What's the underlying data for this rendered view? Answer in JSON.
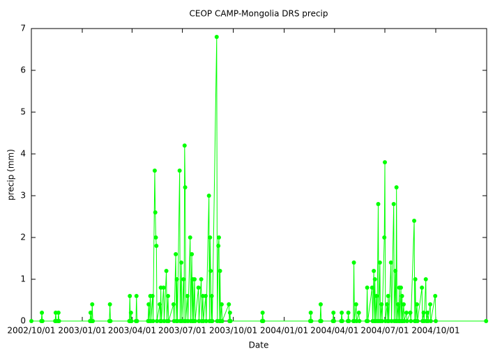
{
  "chart_data": {
    "type": "line",
    "title": "CEOP CAMP-Mongolia DRS  precip",
    "x_label": "Date",
    "y_label": "precip (mm)",
    "color": "#00ff00",
    "x": [
      "2002/10/01",
      "2002/10/19",
      "2002/10/20",
      "2002/10/21",
      "2002/11/13",
      "2002/11/14",
      "2002/11/15",
      "2002/11/18",
      "2002/11/19",
      "2002/11/20",
      "2003/01/15",
      "2003/01/16",
      "2003/01/17",
      "2003/01/18",
      "2003/01/19",
      "2003/01/20",
      "2003/02/19",
      "2003/02/20",
      "2003/02/21",
      "2003/03/27",
      "2003/03/28",
      "2003/03/29",
      "2003/03/30",
      "2003/03/31",
      "2003/04/08",
      "2003/04/09",
      "2003/04/10",
      "2003/04/30",
      "2003/05/01",
      "2003/05/02",
      "2003/05/04",
      "2003/05/05",
      "2003/05/08",
      "2003/05/09",
      "2003/05/12",
      "2003/05/13",
      "2003/05/14",
      "2003/05/15",
      "2003/05/16",
      "2003/05/21",
      "2003/05/22",
      "2003/05/23",
      "2003/05/24",
      "2003/05/28",
      "2003/05/29",
      "2003/06/02",
      "2003/06/03",
      "2003/06/05",
      "2003/06/06",
      "2003/06/15",
      "2003/06/16",
      "2003/06/19",
      "2003/06/20",
      "2003/06/21",
      "2003/06/22",
      "2003/06/26",
      "2003/06/27",
      "2003/06/29",
      "2003/06/30",
      "2003/07/03",
      "2003/07/04",
      "2003/07/05",
      "2003/07/06",
      "2003/07/07",
      "2003/07/10",
      "2003/07/11",
      "2003/07/15",
      "2003/07/16",
      "2003/07/18",
      "2003/07/19",
      "2003/07/20",
      "2003/07/21",
      "2003/07/23",
      "2003/07/24",
      "2003/07/30",
      "2003/07/31",
      "2003/08/04",
      "2003/08/05",
      "2003/08/07",
      "2003/08/08",
      "2003/08/12",
      "2003/08/13",
      "2003/08/18",
      "2003/08/19",
      "2003/08/20",
      "2003/08/21",
      "2003/08/22",
      "2003/08/23",
      "2003/08/24",
      "2003/09/01",
      "2003/09/02",
      "2003/09/04",
      "2003/09/05",
      "2003/09/06",
      "2003/09/07",
      "2003/09/08",
      "2003/09/10",
      "2003/09/11",
      "2003/09/23",
      "2003/09/24",
      "2003/09/25",
      "2003/09/26",
      "2003/11/22",
      "2003/11/23",
      "2003/11/24",
      "2004/02/17",
      "2004/02/18",
      "2004/02/19",
      "2004/03/06",
      "2004/03/07",
      "2004/03/08",
      "2004/03/29",
      "2004/03/30",
      "2004/03/31",
      "2004/04/13",
      "2004/04/14",
      "2004/04/15",
      "2004/04/25",
      "2004/04/26",
      "2004/04/27",
      "2004/05/05",
      "2004/05/06",
      "2004/05/07",
      "2004/05/10",
      "2004/05/11",
      "2004/05/15",
      "2004/05/16",
      "2004/05/29",
      "2004/05/30",
      "2004/05/31",
      "2004/06/08",
      "2004/06/09",
      "2004/06/11",
      "2004/06/12",
      "2004/06/13",
      "2004/06/14",
      "2004/06/16",
      "2004/06/17",
      "2004/06/19",
      "2004/06/20",
      "2004/06/22",
      "2004/06/23",
      "2004/06/25",
      "2004/06/26",
      "2004/06/30",
      "2004/07/01",
      "2004/07/02",
      "2004/07/05",
      "2004/07/06",
      "2004/07/07",
      "2004/07/08",
      "2004/07/12",
      "2004/07/13",
      "2004/07/17",
      "2004/07/18",
      "2004/07/20",
      "2004/07/21",
      "2004/07/22",
      "2004/07/23",
      "2004/07/25",
      "2004/07/26",
      "2004/07/27",
      "2004/07/28",
      "2004/07/30",
      "2004/07/31",
      "2004/08/01",
      "2004/08/02",
      "2004/08/04",
      "2004/08/05",
      "2004/08/09",
      "2004/08/10",
      "2004/08/16",
      "2004/08/17",
      "2004/08/23",
      "2004/08/24",
      "2004/08/25",
      "2004/08/26",
      "2004/08/28",
      "2004/08/29",
      "2004/09/06",
      "2004/09/07",
      "2004/09/09",
      "2004/09/10",
      "2004/09/13",
      "2004/09/14",
      "2004/09/16",
      "2004/09/17",
      "2004/09/21",
      "2004/09/22",
      "2004/09/30",
      "2004/10/01",
      "2004/12/31"
    ],
    "values": [
      0,
      0,
      0.2,
      0,
      0,
      0.2,
      0,
      0,
      0.2,
      0,
      0,
      0.2,
      0,
      0,
      0.4,
      0,
      0,
      0.4,
      0,
      0,
      0.6,
      0,
      0.2,
      0,
      0,
      0.6,
      0,
      0,
      0.4,
      0,
      0.6,
      0,
      0.6,
      0,
      3.6,
      2.6,
      2.0,
      1.8,
      0,
      0.4,
      0,
      0.8,
      0,
      0.8,
      0,
      1.2,
      0,
      0.6,
      0,
      0.4,
      0,
      1.6,
      0,
      1.0,
      0,
      3.6,
      0,
      1.4,
      0,
      1.0,
      0,
      4.2,
      3.2,
      0,
      0.6,
      0,
      2.0,
      0,
      1.6,
      0,
      1.0,
      0,
      1.0,
      0,
      0.8,
      0,
      1.0,
      0,
      0.6,
      0,
      0.6,
      0,
      3.0,
      0,
      2.0,
      1.2,
      0,
      0.6,
      0,
      6.8,
      0,
      1.8,
      2.0,
      0,
      1.2,
      0,
      0.4,
      0,
      0.4,
      0,
      0.2,
      0,
      0,
      0.2,
      0,
      0,
      0.2,
      0,
      0,
      0.4,
      0,
      0,
      0.2,
      0,
      0,
      0.2,
      0,
      0,
      0.2,
      0,
      0,
      1.4,
      0,
      0.4,
      0,
      0.2,
      0,
      0,
      0.8,
      0,
      0.8,
      0,
      1.2,
      0,
      1.0,
      0,
      0.6,
      0,
      2.8,
      0,
      1.4,
      0,
      0.4,
      0,
      2.0,
      3.8,
      0,
      0.4,
      0,
      0.6,
      0,
      1.4,
      0,
      2.8,
      0,
      1.2,
      0,
      3.2,
      0,
      0.4,
      0,
      0.8,
      0,
      0.8,
      0,
      0.6,
      0,
      0.4,
      0,
      0.2,
      0,
      0.2,
      0,
      2.4,
      0,
      1.0,
      0,
      0.4,
      0,
      0.8,
      0,
      0.2,
      0,
      1.0,
      0,
      0.2,
      0,
      0.4,
      0,
      0.6,
      0,
      0
    ],
    "xlim": [
      "2002/10/01",
      "2005/01/01"
    ],
    "xticks": [
      "2002/10/01",
      "2003/01/01",
      "2003/04/01",
      "2003/07/01",
      "2003/10/01",
      "2004/01/01",
      "2004/04/01",
      "2004/07/01",
      "2004/10/01"
    ],
    "ylim": [
      0,
      7
    ],
    "yticks": [
      0,
      1,
      2,
      3,
      4,
      5,
      6,
      7
    ]
  }
}
